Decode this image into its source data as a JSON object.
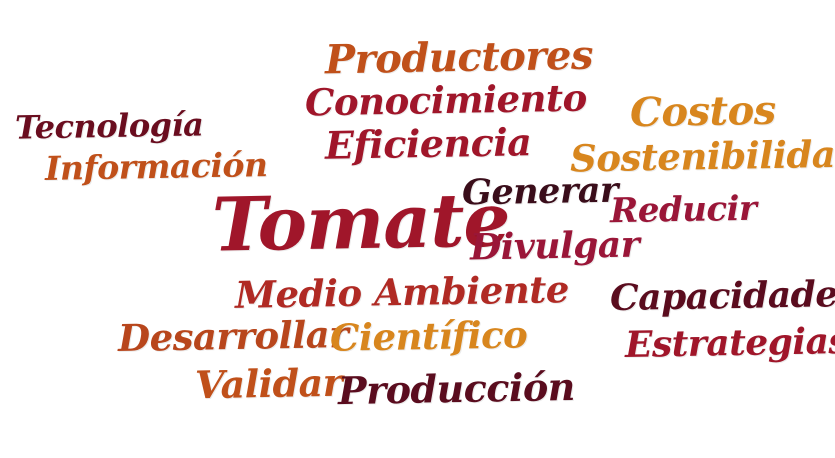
{
  "wordcloud": {
    "words": [
      {
        "id": "productores",
        "text": "Productores",
        "color": "#c0501a"
      },
      {
        "id": "conocimiento",
        "text": "Conocimiento",
        "color": "#a0162a"
      },
      {
        "id": "eficiencia",
        "text": "Eficiencia",
        "color": "#a0162a"
      },
      {
        "id": "tecnologia",
        "text": "Tecnología",
        "color": "#6a0d1f"
      },
      {
        "id": "informacion",
        "text": "Información",
        "color": "#c0501a"
      },
      {
        "id": "costos",
        "text": "Costos",
        "color": "#d8861e"
      },
      {
        "id": "sostenibilidad",
        "text": "Sostenibilidad",
        "color": "#d8861e"
      },
      {
        "id": "generar",
        "text": "Generar",
        "color": "#3a0d1a"
      },
      {
        "id": "reducir",
        "text": "Reducir",
        "color": "#9a1638"
      },
      {
        "id": "tomate",
        "text": "Tomate",
        "color": "#a0162a"
      },
      {
        "id": "divulgar",
        "text": "Divulgar",
        "color": "#9a1638"
      },
      {
        "id": "medioambiente",
        "text": "Medio Ambiente",
        "color": "#b02a24"
      },
      {
        "id": "capacidades",
        "text": "Capacidades",
        "color": "#5a0c1e"
      },
      {
        "id": "desarrollar",
        "text": "Desarrollar",
        "color": "#b8461c"
      },
      {
        "id": "cientifico",
        "text": "Científico",
        "color": "#d8861e"
      },
      {
        "id": "estrategias",
        "text": "Estrategias",
        "color": "#a0162a"
      },
      {
        "id": "validar",
        "text": "Validar",
        "color": "#c0501a"
      },
      {
        "id": "produccion",
        "text": "Producción",
        "color": "#5a0c1e"
      }
    ]
  }
}
